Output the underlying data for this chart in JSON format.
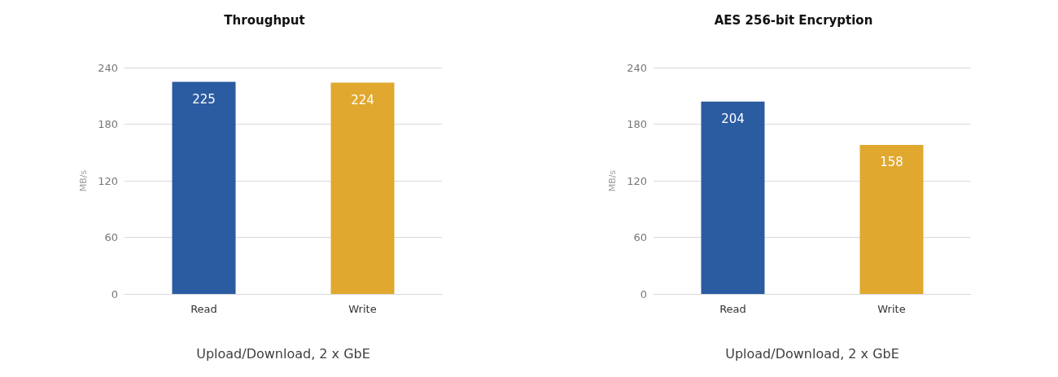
{
  "chart_data": [
    {
      "type": "bar",
      "title": "Throughput",
      "xlabel": "Upload/Download, 2 x GbE",
      "ylabel": "MB/s",
      "categories": [
        "Read",
        "Write"
      ],
      "values": [
        225,
        224
      ],
      "colors": [
        "#2b5ba0",
        "#e0a82e"
      ],
      "ylim": [
        0,
        240
      ],
      "yticks": [
        0,
        60,
        120,
        180,
        240
      ],
      "grid": "y",
      "data_labels": true
    },
    {
      "type": "bar",
      "title": "AES 256-bit Encryption",
      "xlabel": "Upload/Download, 2 x GbE",
      "ylabel": "MB/s",
      "categories": [
        "Read",
        "Write"
      ],
      "values": [
        204,
        158
      ],
      "colors": [
        "#2b5ba0",
        "#e0a82e"
      ],
      "ylim": [
        0,
        240
      ],
      "yticks": [
        0,
        60,
        120,
        180,
        240
      ],
      "grid": "y",
      "data_labels": true
    }
  ]
}
